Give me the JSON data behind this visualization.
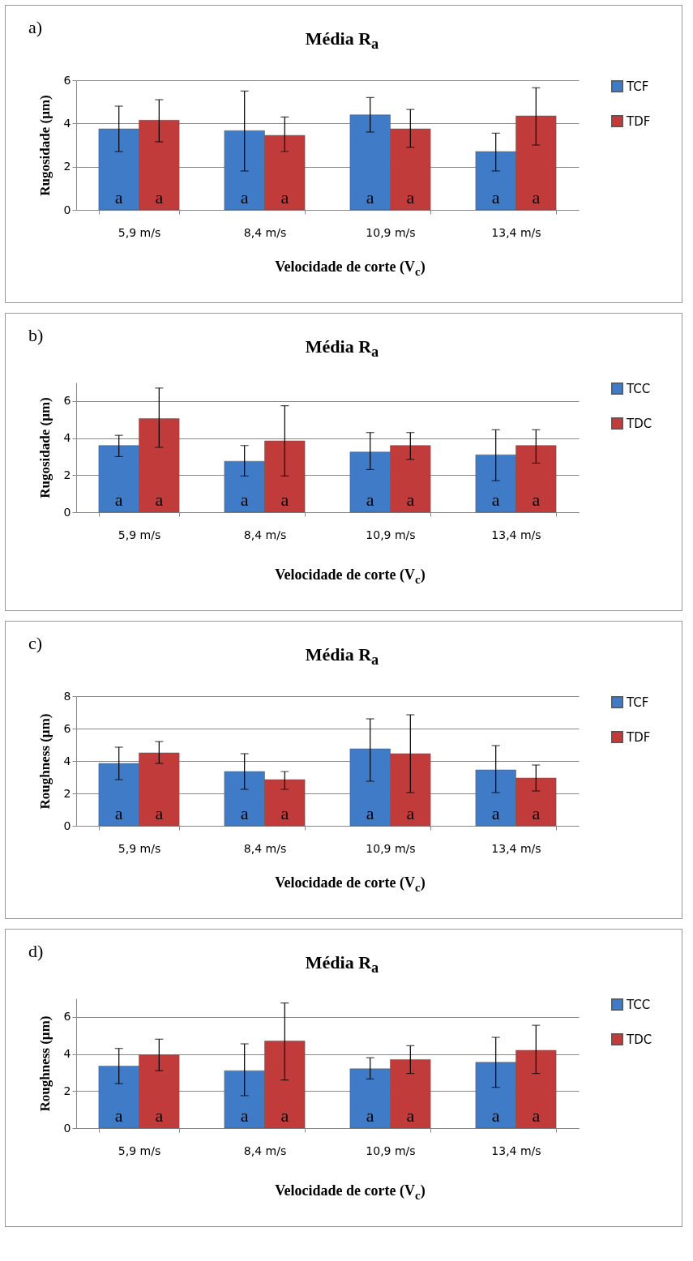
{
  "chart_data": [
    {
      "type": "bar",
      "title": "Média R$_{a}$",
      "xlabel": "Velocidade de corte (V$_{c}$)",
      "ylabel": "Rugosidade (µm)",
      "annotations": [
        "a)"
      ],
      "categories": [
        "5,9 m/s",
        "8,4 m/s",
        "10,9 m/s",
        "13,4 m/s"
      ],
      "ylim": [
        0,
        6
      ],
      "yticks": [
        0,
        2,
        4,
        6
      ],
      "grid": "y",
      "legend": "right",
      "series": [
        {
          "name": "TCF",
          "color": "#3f7bc6",
          "values": [
            3.75,
            3.67,
            4.4,
            2.7
          ],
          "errors": [
            [
              2.7,
              4.8
            ],
            [
              1.8,
              5.5
            ],
            [
              3.6,
              5.2
            ],
            [
              1.8,
              3.55
            ]
          ],
          "value_labels": [
            "a",
            "a",
            "a",
            "a"
          ]
        },
        {
          "name": "TDF",
          "color": "#c23b3b",
          "values": [
            4.15,
            3.45,
            3.75,
            4.35
          ],
          "errors": [
            [
              3.15,
              5.1
            ],
            [
              2.7,
              4.3
            ],
            [
              2.9,
              4.65
            ],
            [
              3.0,
              5.65
            ]
          ],
          "value_labels": [
            "a",
            "a",
            "a",
            "a"
          ]
        }
      ]
    },
    {
      "type": "bar",
      "title": "Média R$_{a}$",
      "xlabel": "Velocidade de corte (V$_{c}$)",
      "ylabel": "Rugosidade (µm)",
      "annotations": [
        "b)"
      ],
      "categories": [
        "5,9 m/s",
        "8,4 m/s",
        "10,9 m/s",
        "13,4 m/s"
      ],
      "ylim": [
        0,
        7
      ],
      "yticks": [
        0,
        2,
        4,
        6
      ],
      "grid": "y",
      "legend": "right",
      "series": [
        {
          "name": "TCC",
          "color": "#3f7bc6",
          "values": [
            3.6,
            2.75,
            3.25,
            3.1
          ],
          "errors": [
            [
              3.0,
              4.15
            ],
            [
              1.95,
              3.6
            ],
            [
              2.3,
              4.3
            ],
            [
              1.7,
              4.45
            ]
          ],
          "value_labels": [
            "a",
            "a",
            "a",
            "a"
          ]
        },
        {
          "name": "TDC",
          "color": "#c23b3b",
          "values": [
            5.05,
            3.85,
            3.6,
            3.6
          ],
          "errors": [
            [
              3.5,
              6.7
            ],
            [
              1.95,
              5.75
            ],
            [
              2.85,
              4.3
            ],
            [
              2.65,
              4.45
            ]
          ],
          "value_labels": [
            "a",
            "a",
            "a",
            "a"
          ]
        }
      ]
    },
    {
      "type": "bar",
      "title": "Média R$_{a}$",
      "xlabel": "Velocidade de corte (V$_{c}$)",
      "ylabel": "Roughness (µm)",
      "annotations": [
        "c)"
      ],
      "categories": [
        "5,9 m/s",
        "8,4 m/s",
        "10,9 m/s",
        "13,4 m/s"
      ],
      "ylim": [
        0,
        8
      ],
      "yticks": [
        0,
        2,
        4,
        6,
        8
      ],
      "grid": "y",
      "legend": "right",
      "series": [
        {
          "name": "TCF",
          "color": "#3f7bc6",
          "values": [
            3.85,
            3.35,
            4.75,
            3.45
          ],
          "errors": [
            [
              2.85,
              4.85
            ],
            [
              2.25,
              4.45
            ],
            [
              2.75,
              6.6
            ],
            [
              2.05,
              4.95
            ]
          ],
          "value_labels": [
            "a",
            "a",
            "a",
            "a"
          ]
        },
        {
          "name": "TDF",
          "color": "#c23b3b",
          "values": [
            4.5,
            2.85,
            4.45,
            2.95
          ],
          "errors": [
            [
              3.85,
              5.2
            ],
            [
              2.25,
              3.35
            ],
            [
              2.05,
              6.85
            ],
            [
              2.15,
              3.75
            ]
          ],
          "value_labels": [
            "a",
            "a",
            "a",
            "a"
          ]
        }
      ]
    },
    {
      "type": "bar",
      "title": "Média R$_{a}$",
      "xlabel": "Velocidade de corte (V$_{c}$)",
      "ylabel": "Roughness (µm)",
      "annotations": [
        "d)"
      ],
      "categories": [
        "5,9 m/s",
        "8,4 m/s",
        "10,9 m/s",
        "13,4 m/s"
      ],
      "ylim": [
        0,
        7
      ],
      "yticks": [
        0,
        2,
        4,
        6
      ],
      "grid": "y",
      "legend": "right",
      "series": [
        {
          "name": "TCC",
          "color": "#3f7bc6",
          "values": [
            3.35,
            3.1,
            3.2,
            3.55
          ],
          "errors": [
            [
              2.4,
              4.3
            ],
            [
              1.75,
              4.55
            ],
            [
              2.65,
              3.8
            ],
            [
              2.2,
              4.9
            ]
          ],
          "value_labels": [
            "a",
            "a",
            "a",
            "a"
          ]
        },
        {
          "name": "TDC",
          "color": "#c23b3b",
          "values": [
            3.95,
            4.7,
            3.7,
            4.2
          ],
          "errors": [
            [
              3.1,
              4.8
            ],
            [
              2.6,
              6.75
            ],
            [
              2.95,
              4.45
            ],
            [
              2.95,
              5.55
            ]
          ],
          "value_labels": [
            "a",
            "a",
            "a",
            "a"
          ]
        }
      ]
    }
  ]
}
